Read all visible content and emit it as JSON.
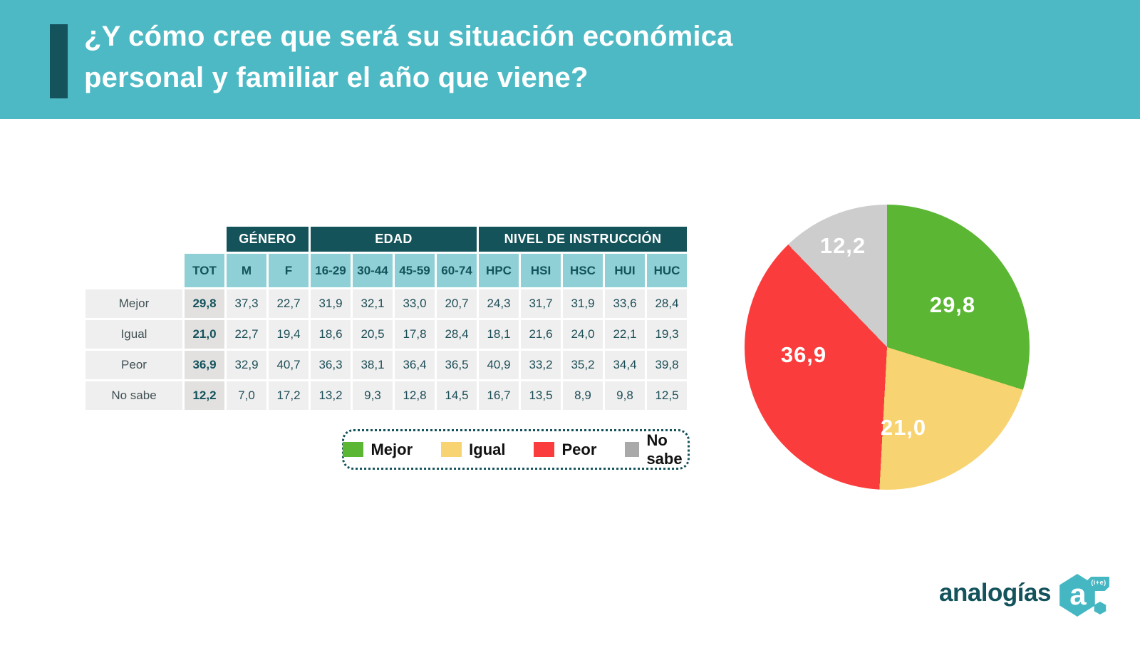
{
  "header": {
    "title_line1": "¿Y cómo cree que será su situación económica",
    "title_line2": "personal y familiar el año que viene?",
    "band_color": "#4cb9c4",
    "accent_color": "#14535c"
  },
  "table": {
    "group_headers": [
      {
        "label": "GÉNERO",
        "span": 2
      },
      {
        "label": "EDAD",
        "span": 4
      },
      {
        "label": "NIVEL DE INSTRUCCIÓN",
        "span": 5
      }
    ],
    "columns": [
      "TOT",
      "M",
      "F",
      "16-29",
      "30-44",
      "45-59",
      "60-74",
      "HPC",
      "HSI",
      "HSC",
      "HUI",
      "HUC"
    ],
    "rows": [
      {
        "label": "Mejor",
        "values": [
          "29,8",
          "37,3",
          "22,7",
          "31,9",
          "32,1",
          "33,0",
          "20,7",
          "24,3",
          "31,7",
          "31,9",
          "33,6",
          "28,4"
        ]
      },
      {
        "label": "Igual",
        "values": [
          "21,0",
          "22,7",
          "19,4",
          "18,6",
          "20,5",
          "17,8",
          "28,4",
          "18,1",
          "21,6",
          "24,0",
          "22,1",
          "19,3"
        ]
      },
      {
        "label": "Peor",
        "values": [
          "36,9",
          "32,9",
          "40,7",
          "36,3",
          "38,1",
          "36,4",
          "36,5",
          "40,9",
          "33,2",
          "35,2",
          "34,4",
          "39,8"
        ]
      },
      {
        "label": "No sabe",
        "values": [
          "12,2",
          "7,0",
          "17,2",
          "13,2",
          "9,3",
          "12,8",
          "14,5",
          "16,7",
          "13,5",
          "8,9",
          "9,8",
          "12,5"
        ]
      }
    ]
  },
  "legend": {
    "items": [
      {
        "label": "Mejor",
        "color": "#5bb733"
      },
      {
        "label": "Igual",
        "color": "#f8d371"
      },
      {
        "label": "Peor",
        "color": "#fa3d3c"
      },
      {
        "label": "No sabe",
        "color": "#a9a9a9"
      }
    ]
  },
  "chart_data": {
    "type": "pie",
    "title": "",
    "start_angle_deg": 0,
    "direction": "clockwise",
    "legend_position": "left-below-table",
    "slices": [
      {
        "name": "Mejor",
        "value": 29.8,
        "label": "29,8",
        "color": "#5bb733"
      },
      {
        "name": "Igual",
        "value": 21.0,
        "label": "21,0",
        "color": "#f8d371"
      },
      {
        "name": "Peor",
        "value": 36.9,
        "label": "36,9",
        "color": "#fa3d3c"
      },
      {
        "name": "No sabe",
        "value": 12.2,
        "label": "12,2",
        "color": "#cdcdcd"
      }
    ]
  },
  "footer": {
    "brand": "analogías",
    "brand_mark_letter": "a",
    "brand_mark_sup": "(i+e)"
  }
}
